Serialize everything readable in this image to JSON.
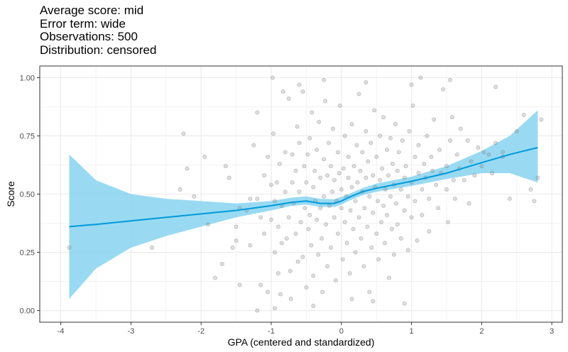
{
  "title_lines": [
    "Average score: mid",
    "Error term: wide",
    "Observations: 500",
    "Distribution: censored"
  ],
  "chart_data": {
    "type": "scatter",
    "xlabel": "GPA (centered and standardized)",
    "ylabel": "Score",
    "xlim": [
      -4.3,
      3.15
    ],
    "ylim": [
      -0.05,
      1.05
    ],
    "x_ticks": [
      -4,
      -3,
      -2,
      -1,
      0,
      1,
      2,
      3
    ],
    "y_ticks": [
      0.0,
      0.25,
      0.5,
      0.75,
      1.0
    ],
    "x_tick_labels": [
      "-4",
      "-3",
      "-2",
      "-1",
      "0",
      "1",
      "2",
      "3"
    ],
    "y_tick_labels": [
      "0.00",
      "0.25",
      "0.50",
      "0.75",
      "1.00"
    ],
    "grid": true,
    "colors": {
      "points": "#808080",
      "smooth_line": "#0099dd",
      "confidence_band": "#87d3f0",
      "grid": "#ebebeb",
      "panel_border": "#333333"
    },
    "smooth": {
      "x": [
        -3.88,
        -3.5,
        -3.0,
        -2.5,
        -2.0,
        -1.5,
        -1.0,
        -0.7,
        -0.5,
        -0.3,
        -0.1,
        0.0,
        0.1,
        0.3,
        0.5,
        1.0,
        1.5,
        2.0,
        2.4,
        2.8
      ],
      "y": [
        0.36,
        0.37,
        0.385,
        0.4,
        0.415,
        0.43,
        0.45,
        0.465,
        0.47,
        0.46,
        0.46,
        0.47,
        0.485,
        0.51,
        0.525,
        0.555,
        0.59,
        0.635,
        0.67,
        0.7
      ],
      "lower": [
        0.05,
        0.18,
        0.27,
        0.32,
        0.36,
        0.4,
        0.43,
        0.45,
        0.455,
        0.445,
        0.445,
        0.455,
        0.47,
        0.495,
        0.51,
        0.535,
        0.565,
        0.59,
        0.59,
        0.55
      ],
      "upper": [
        0.67,
        0.56,
        0.5,
        0.48,
        0.47,
        0.46,
        0.47,
        0.485,
        0.49,
        0.48,
        0.478,
        0.488,
        0.5,
        0.525,
        0.545,
        0.575,
        0.62,
        0.685,
        0.75,
        0.86
      ]
    },
    "points": [
      [
        -3.88,
        0.27
      ],
      [
        -2.7,
        0.27
      ],
      [
        -2.3,
        0.52
      ],
      [
        -2.25,
        0.76
      ],
      [
        -2.2,
        0.61
      ],
      [
        -2.1,
        0.49
      ],
      [
        -1.95,
        0.66
      ],
      [
        -1.9,
        0.37
      ],
      [
        -1.8,
        0.14
      ],
      [
        -1.7,
        0.2
      ],
      [
        -1.65,
        0.62
      ],
      [
        -1.6,
        0.57
      ],
      [
        -1.55,
        0.27
      ],
      [
        -1.5,
        0.36
      ],
      [
        -1.5,
        0.3
      ],
      [
        -1.45,
        0.11
      ],
      [
        -1.45,
        0.44
      ],
      [
        -1.35,
        0.43
      ],
      [
        -1.3,
        0.28
      ],
      [
        -1.3,
        0.48
      ],
      [
        -1.25,
        0.71
      ],
      [
        -1.2,
        0.85
      ],
      [
        -1.2,
        0.48
      ],
      [
        -1.15,
        0.4
      ],
      [
        -1.15,
        0.11
      ],
      [
        -1.1,
        0.58
      ],
      [
        -1.1,
        0.33
      ],
      [
        -1.05,
        0.08
      ],
      [
        -1.05,
        0.66
      ],
      [
        -1.0,
        0.39
      ],
      [
        -1.0,
        0.54
      ],
      [
        -0.98,
        1.0
      ],
      [
        -0.97,
        0.76
      ],
      [
        -0.95,
        0.25
      ],
      [
        -0.95,
        0.47
      ],
      [
        -0.92,
        0.55
      ],
      [
        -0.9,
        0.36
      ],
      [
        -0.9,
        0.16
      ],
      [
        -0.88,
        0.63
      ],
      [
        -0.87,
        0.07
      ],
      [
        -0.85,
        0.29
      ],
      [
        -0.85,
        0.45
      ],
      [
        -0.83,
        0.94
      ],
      [
        -0.8,
        0.68
      ],
      [
        -0.8,
        0.51
      ],
      [
        -0.78,
        0.31
      ],
      [
        -0.75,
        0.4
      ],
      [
        -0.75,
        0.91
      ],
      [
        -0.73,
        0.17
      ],
      [
        -0.72,
        0.05
      ],
      [
        -0.7,
        0.55
      ],
      [
        -0.7,
        0.67
      ],
      [
        -0.68,
        0.46
      ],
      [
        -0.65,
        0.6
      ],
      [
        -0.65,
        0.33
      ],
      [
        -0.63,
        0.79
      ],
      [
        -0.62,
        0.21
      ],
      [
        -0.6,
        0.51
      ],
      [
        -0.6,
        0.72
      ],
      [
        -0.58,
        0.38
      ],
      [
        -0.55,
        0.94
      ],
      [
        -0.55,
        0.23
      ],
      [
        -0.53,
        0.62
      ],
      [
        -0.52,
        0.44
      ],
      [
        -0.5,
        0.55
      ],
      [
        -0.5,
        0.1
      ],
      [
        -0.48,
        0.67
      ],
      [
        -0.47,
        0.35
      ],
      [
        -0.45,
        0.74
      ],
      [
        -0.45,
        0.41
      ],
      [
        -0.43,
        0.28
      ],
      [
        -0.42,
        0.85
      ],
      [
        -0.4,
        0.53
      ],
      [
        -0.4,
        0.15
      ],
      [
        -0.38,
        0.6
      ],
      [
        -0.37,
        0.47
      ],
      [
        -0.35,
        0.69
      ],
      [
        -0.35,
        0.39
      ],
      [
        -0.33,
        0.24
      ],
      [
        -0.32,
        0.81
      ],
      [
        -0.3,
        0.57
      ],
      [
        -0.3,
        0.44
      ],
      [
        -0.28,
        0.31
      ],
      [
        -0.27,
        0.08
      ],
      [
        -0.25,
        0.65
      ],
      [
        -0.25,
        0.49
      ],
      [
        -0.23,
        0.9
      ],
      [
        -0.22,
        0.37
      ],
      [
        -0.2,
        0.58
      ],
      [
        -0.2,
        0.19
      ],
      [
        -0.18,
        0.72
      ],
      [
        -0.17,
        0.45
      ],
      [
        -0.15,
        0.27
      ],
      [
        -0.15,
        0.62
      ],
      [
        -0.13,
        0.51
      ],
      [
        -0.12,
        0.78
      ],
      [
        -0.1,
        0.4
      ],
      [
        -0.1,
        0.56
      ],
      [
        -0.08,
        0.13
      ],
      [
        -0.07,
        0.47
      ],
      [
        -0.05,
        0.68
      ],
      [
        -0.05,
        0.33
      ],
      [
        -0.03,
        0.59
      ],
      [
        -0.02,
        0.88
      ],
      [
        0.0,
        0.44
      ],
      [
        0.0,
        0.52
      ],
      [
        0.02,
        0.22
      ],
      [
        0.03,
        0.61
      ],
      [
        0.05,
        0.38
      ],
      [
        0.05,
        0.75
      ],
      [
        0.07,
        0.49
      ],
      [
        0.08,
        0.29
      ],
      [
        0.1,
        0.57
      ],
      [
        0.1,
        0.66
      ],
      [
        0.12,
        0.16
      ],
      [
        0.13,
        0.43
      ],
      [
        0.15,
        0.8
      ],
      [
        0.15,
        0.53
      ],
      [
        0.17,
        0.35
      ],
      [
        0.18,
        0.62
      ],
      [
        0.2,
        0.47
      ],
      [
        0.2,
        0.25
      ],
      [
        0.22,
        0.71
      ],
      [
        0.23,
        0.55
      ],
      [
        0.25,
        0.4
      ],
      [
        0.25,
        0.93
      ],
      [
        0.27,
        0.6
      ],
      [
        0.28,
        0.31
      ],
      [
        0.3,
        0.51
      ],
      [
        0.3,
        0.68
      ],
      [
        0.32,
        0.19
      ],
      [
        0.33,
        0.44
      ],
      [
        0.35,
        0.77
      ],
      [
        0.35,
        0.57
      ],
      [
        0.37,
        0.36
      ],
      [
        0.38,
        0.64
      ],
      [
        0.4,
        0.49
      ],
      [
        0.4,
        0.08
      ],
      [
        0.42,
        0.72
      ],
      [
        0.43,
        0.27
      ],
      [
        0.45,
        0.58
      ],
      [
        0.45,
        0.42
      ],
      [
        0.47,
        0.86
      ],
      [
        0.48,
        0.53
      ],
      [
        0.5,
        0.33
      ],
      [
        0.5,
        0.66
      ],
      [
        0.52,
        0.47
      ],
      [
        0.53,
        0.22
      ],
      [
        0.55,
        0.75
      ],
      [
        0.55,
        0.56
      ],
      [
        0.57,
        0.38
      ],
      [
        0.58,
        0.61
      ],
      [
        0.6,
        0.45
      ],
      [
        0.6,
        0.83
      ],
      [
        0.62,
        0.29
      ],
      [
        0.63,
        0.52
      ],
      [
        0.65,
        0.69
      ],
      [
        0.65,
        0.41
      ],
      [
        0.67,
        0.58
      ],
      [
        0.68,
        0.14
      ],
      [
        0.7,
        0.49
      ],
      [
        0.7,
        0.74
      ],
      [
        0.72,
        0.35
      ],
      [
        0.73,
        0.63
      ],
      [
        0.75,
        0.54
      ],
      [
        0.75,
        0.24
      ],
      [
        0.77,
        0.8
      ],
      [
        0.78,
        0.46
      ],
      [
        0.8,
        0.6
      ],
      [
        0.8,
        0.37
      ],
      [
        0.82,
        0.68
      ],
      [
        0.85,
        0.52
      ],
      [
        0.85,
        0.31
      ],
      [
        0.87,
        0.73
      ],
      [
        0.9,
        0.57
      ],
      [
        0.9,
        0.43
      ],
      [
        0.92,
        0.62
      ],
      [
        0.95,
        0.26
      ],
      [
        0.95,
        0.49
      ],
      [
        0.97,
        0.77
      ],
      [
        1.0,
        0.55
      ],
      [
        1.0,
        0.4
      ],
      [
        1.02,
        0.88
      ],
      [
        1.05,
        0.66
      ],
      [
        1.05,
        0.47
      ],
      [
        1.08,
        0.3
      ],
      [
        1.1,
        0.59
      ],
      [
        1.1,
        0.71
      ],
      [
        1.13,
        1.0
      ],
      [
        1.15,
        0.52
      ],
      [
        1.15,
        0.41
      ],
      [
        1.18,
        0.63
      ],
      [
        1.2,
        0.57
      ],
      [
        1.22,
        0.75
      ],
      [
        1.25,
        0.48
      ],
      [
        1.25,
        0.34
      ],
      [
        1.28,
        0.66
      ],
      [
        1.3,
        0.6
      ],
      [
        1.32,
        0.82
      ],
      [
        1.35,
        0.54
      ],
      [
        1.38,
        0.44
      ],
      [
        1.4,
        0.69
      ],
      [
        1.42,
        0.59
      ],
      [
        1.45,
        0.95
      ],
      [
        1.5,
        0.52
      ],
      [
        1.5,
        0.62
      ],
      [
        1.52,
        0.38
      ],
      [
        1.55,
        0.73
      ],
      [
        1.58,
        0.83
      ],
      [
        1.6,
        0.56
      ],
      [
        1.62,
        0.48
      ],
      [
        1.65,
        0.67
      ],
      [
        1.68,
        0.61
      ],
      [
        1.7,
        0.78
      ],
      [
        1.75,
        0.56
      ],
      [
        1.8,
        0.73
      ],
      [
        1.82,
        0.46
      ],
      [
        1.85,
        0.64
      ],
      [
        1.9,
        0.58
      ],
      [
        1.95,
        0.7
      ],
      [
        2.0,
        0.62
      ],
      [
        2.03,
        0.68
      ],
      [
        2.1,
        0.67
      ],
      [
        2.15,
        0.59
      ],
      [
        2.2,
        0.72
      ],
      [
        2.3,
        0.66
      ],
      [
        2.4,
        0.48
      ],
      [
        2.5,
        0.77
      ],
      [
        2.6,
        0.84
      ],
      [
        2.7,
        0.52
      ],
      [
        2.75,
        0.47
      ],
      [
        2.8,
        0.57
      ],
      [
        2.85,
        0.82
      ],
      [
        2.3,
        0.68
      ],
      [
        -0.6,
        0.97
      ],
      [
        -0.25,
        0.99
      ],
      [
        0.35,
        0.98
      ],
      [
        1.0,
        0.97
      ],
      [
        1.55,
        0.99
      ],
      [
        2.2,
        0.96
      ],
      [
        -0.4,
        0.02
      ],
      [
        -0.95,
        0.01
      ],
      [
        -1.2,
        0.0
      ],
      [
        0.15,
        0.05
      ],
      [
        0.45,
        0.04
      ],
      [
        0.9,
        0.03
      ]
    ]
  }
}
